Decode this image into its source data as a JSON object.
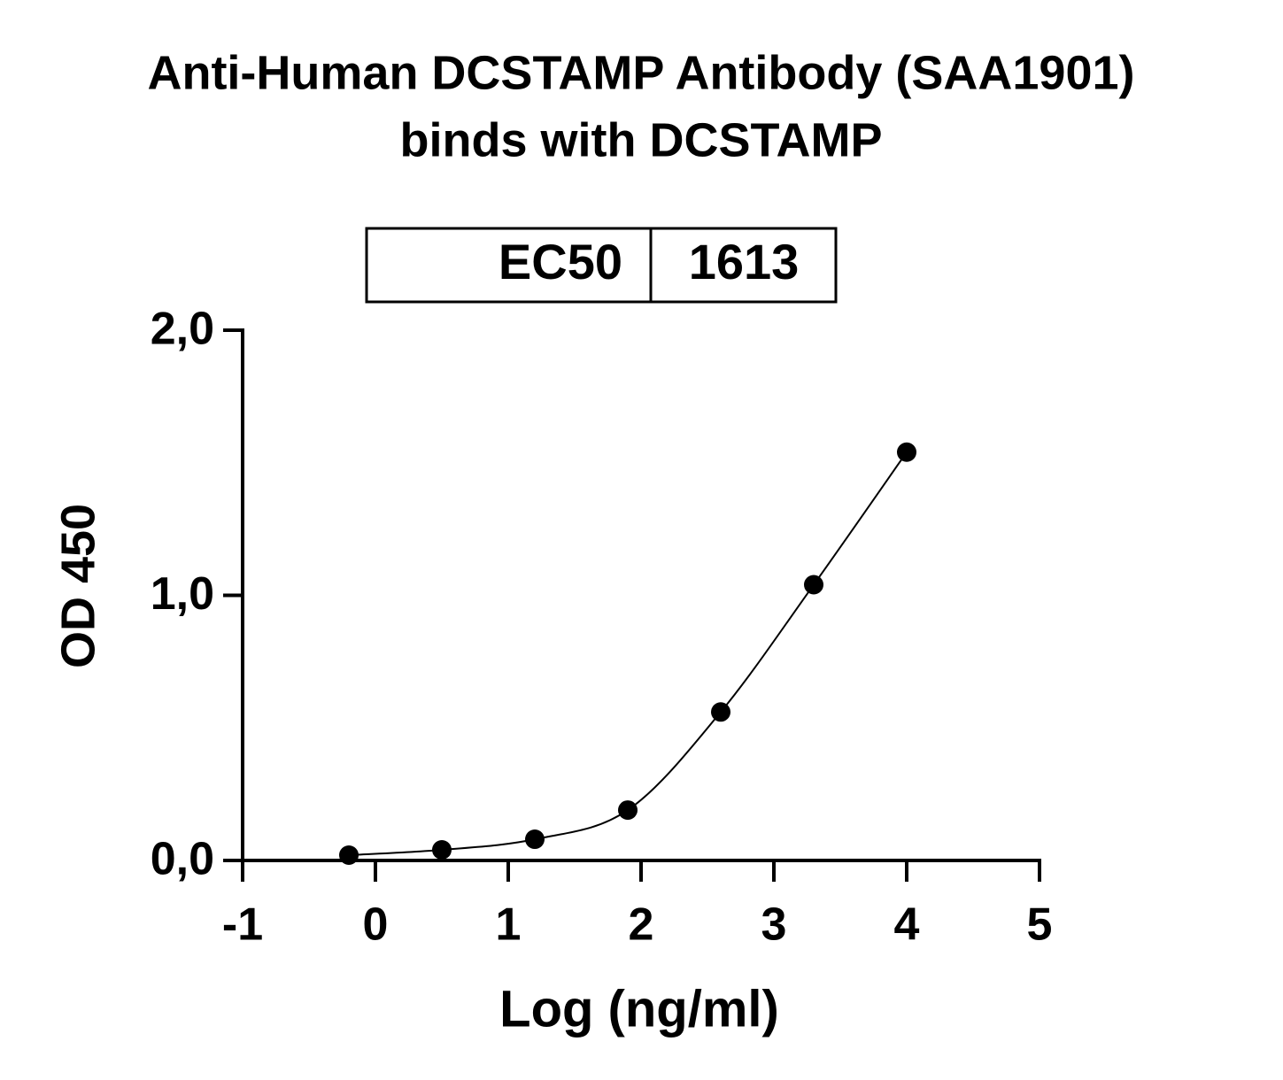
{
  "chart_data": {
    "type": "scatter",
    "title": "Anti-Human DCSTAMP Antibody (SAA1901)",
    "subtitle": "binds with DCSTAMP",
    "x_label": "Log (ng/ml)",
    "y_label": "OD 450",
    "annotation_table": {
      "label": "EC50",
      "value": 1613
    },
    "series": [
      {
        "color": "#000000",
        "x": [
          -0.2,
          0.5,
          1.2,
          1.9,
          2.6,
          3.3,
          4.0
        ],
        "values": [
          0.02,
          0.04,
          0.08,
          0.19,
          0.56,
          1.04,
          1.54
        ]
      }
    ],
    "xlim": [
      -1,
      5
    ],
    "xticks": [
      -1,
      0,
      1,
      2,
      3,
      4,
      5
    ],
    "ylim": [
      0,
      2
    ],
    "yticks": [
      {
        "value": 0,
        "label": "0,0"
      },
      {
        "value": 1,
        "label": "1,0"
      },
      {
        "value": 2,
        "label": "2,0"
      }
    ],
    "grid": false
  }
}
